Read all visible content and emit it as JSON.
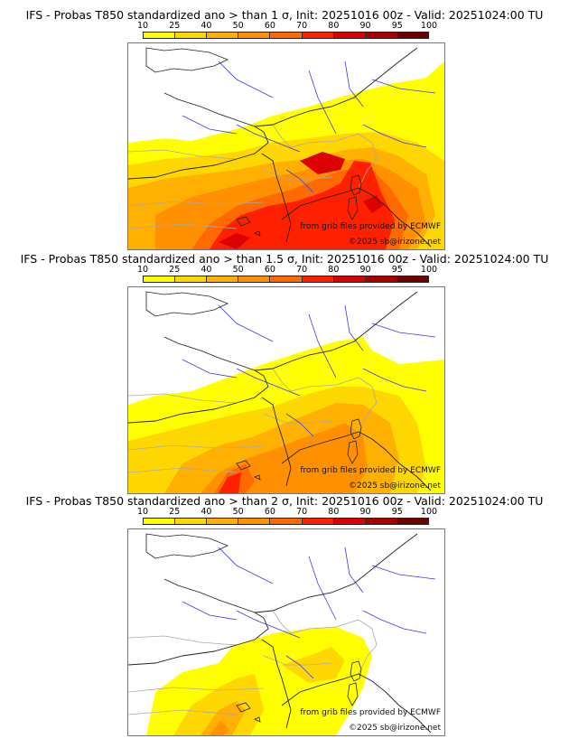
{
  "legend": {
    "ticks": [
      "10",
      "25",
      "40",
      "50",
      "60",
      "70",
      "80",
      "90",
      "95",
      "100"
    ],
    "colors": [
      "#ffff00",
      "#ffd700",
      "#ffb000",
      "#ff9000",
      "#ff6a00",
      "#ff2000",
      "#dd0000",
      "#aa0000",
      "#6e0000"
    ]
  },
  "panels": [
    {
      "title": "IFS - Probas T850  standardized ano > than 1 σ, Init: 20251016 00z - Valid: 20251024:00 TU",
      "credit_source": "from grib files provided by ECMWF",
      "credit_copyright": "©2025 sb@irizone.net",
      "intensity": 3
    },
    {
      "title": "IFS - Probas T850  standardized ano > than 1.5 σ, Init: 20251016 00z - Valid: 20251024:00 TU",
      "credit_source": "from grib files provided by ECMWF",
      "credit_copyright": "©2025 sb@irizone.net",
      "intensity": 2
    },
    {
      "title": "IFS - Probas T850  standardized ano > than 2 σ, Init: 20251016 00z - Valid: 20251024:00 TU",
      "credit_source": "from grib files provided by ECMWF",
      "credit_copyright": "©2025 sb@irizone.net",
      "intensity": 1
    }
  ]
}
